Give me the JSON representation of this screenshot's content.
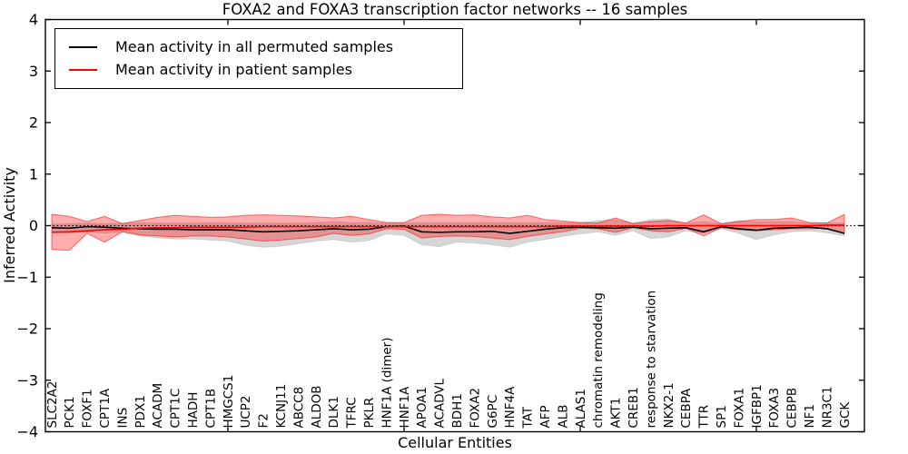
{
  "chart_data": {
    "type": "line",
    "title": "FOXA2 and FOXA3 transcription factor networks -- 16 samples",
    "xlabel": "Cellular Entities",
    "ylabel": "Inferred Activity",
    "ylim": [
      -4,
      4
    ],
    "yticks": [
      4,
      3,
      2,
      1,
      0,
      -1,
      -2,
      -3,
      -4
    ],
    "xticks_major": [
      10,
      20,
      30,
      40
    ],
    "grid": false,
    "legend_position": "upper left",
    "zero_reference_line": 0,
    "categories": [
      "SLC2A2",
      "PCK1",
      "FOXF1",
      "CPT1A",
      "INS",
      "PDX1",
      "ACADM",
      "CPT1C",
      "HADH",
      "CPT1B",
      "HMGCS1",
      "UCP2",
      "F2",
      "KCNJ11",
      "ABCC8",
      "ALDOB",
      "DLK1",
      "TFRC",
      "PKLR",
      "HNF1A (dimer)",
      "HNF1A",
      "APOA1",
      "ACADVL",
      "BDH1",
      "FOXA2",
      "G6PC",
      "HNF4A",
      "TAT",
      "AFP",
      "ALB",
      "ALAS1",
      "chromatin remodeling",
      "AKT1",
      "CREB1",
      "response to starvation",
      "NKX2-1",
      "CEBPA",
      "TTR",
      "SP1",
      "FOXA1",
      "IGFBP1",
      "FOXA3",
      "CEBPB",
      "NF1",
      "NR3C1",
      "GCK"
    ],
    "series": [
      {
        "name": "Mean activity in all permuted samples",
        "color": "#000000",
        "style": "solid",
        "values": [
          -0.04,
          -0.05,
          -0.02,
          -0.03,
          -0.05,
          -0.06,
          -0.07,
          -0.07,
          -0.08,
          -0.08,
          -0.08,
          -0.1,
          -0.12,
          -0.11,
          -0.1,
          -0.08,
          -0.06,
          -0.08,
          -0.07,
          -0.02,
          -0.01,
          -0.12,
          -0.13,
          -0.12,
          -0.12,
          -0.11,
          -0.15,
          -0.11,
          -0.07,
          -0.04,
          -0.03,
          -0.04,
          -0.05,
          -0.03,
          -0.06,
          -0.05,
          -0.04,
          -0.12,
          -0.02,
          -0.06,
          -0.09,
          -0.05,
          -0.04,
          -0.03,
          -0.06,
          -0.15
        ]
      },
      {
        "name": "Mean activity in patient samples",
        "color": "#ff0000",
        "style": "solid",
        "values": [
          -0.13,
          -0.12,
          -0.1,
          -0.08,
          -0.07,
          -0.05,
          -0.04,
          -0.04,
          -0.03,
          -0.03,
          -0.03,
          -0.03,
          -0.02,
          -0.02,
          -0.02,
          -0.02,
          -0.02,
          -0.02,
          -0.02,
          -0.02,
          -0.02,
          -0.02,
          -0.02,
          -0.02,
          -0.02,
          -0.02,
          -0.02,
          -0.02,
          -0.02,
          -0.01,
          -0.01,
          -0.01,
          -0.01,
          -0.01,
          -0.01,
          0.0,
          0.0,
          0.0,
          0.0,
          0.0,
          0.0,
          0.0,
          0.0,
          0.0,
          0.01,
          0.01
        ]
      }
    ],
    "bands": [
      {
        "name": "permuted samples std band",
        "fill": "rgba(0,0,0,0.16)",
        "edge": "rgba(0,0,0,0.10)",
        "upper": [
          0.03,
          0.04,
          0.05,
          0.04,
          0.05,
          0.06,
          0.05,
          0.05,
          0.05,
          0.06,
          0.05,
          0.05,
          0.05,
          0.05,
          0.05,
          0.06,
          0.08,
          0.06,
          0.06,
          0.05,
          0.05,
          0.06,
          0.06,
          0.06,
          0.06,
          0.06,
          0.06,
          0.06,
          0.06,
          0.06,
          0.06,
          0.1,
          0.11,
          0.05,
          0.12,
          0.13,
          0.05,
          0.08,
          0.04,
          0.1,
          0.08,
          0.08,
          0.08,
          0.05,
          0.06,
          0.05
        ],
        "lower": [
          -0.12,
          -0.15,
          -0.12,
          -0.15,
          -0.12,
          -0.2,
          -0.24,
          -0.26,
          -0.26,
          -0.28,
          -0.3,
          -0.38,
          -0.42,
          -0.4,
          -0.35,
          -0.3,
          -0.27,
          -0.32,
          -0.29,
          -0.16,
          -0.19,
          -0.37,
          -0.41,
          -0.32,
          -0.34,
          -0.37,
          -0.42,
          -0.32,
          -0.27,
          -0.21,
          -0.16,
          -0.12,
          -0.19,
          -0.1,
          -0.25,
          -0.22,
          -0.1,
          -0.15,
          -0.06,
          -0.15,
          -0.27,
          -0.18,
          -0.12,
          -0.1,
          -0.14,
          -0.2
        ]
      },
      {
        "name": "patient samples std band",
        "fill": "rgba(255,0,0,0.32)",
        "edge": "rgba(255,0,0,0.55)",
        "upper": [
          0.22,
          0.18,
          0.08,
          0.18,
          0.04,
          0.1,
          0.16,
          0.2,
          0.18,
          0.16,
          0.17,
          0.2,
          0.21,
          0.2,
          0.19,
          0.17,
          0.15,
          0.18,
          0.12,
          0.06,
          0.06,
          0.2,
          0.22,
          0.2,
          0.21,
          0.17,
          0.15,
          0.2,
          0.12,
          0.09,
          0.06,
          0.05,
          0.15,
          0.04,
          0.08,
          0.1,
          0.05,
          0.21,
          0.04,
          0.08,
          0.12,
          0.12,
          0.15,
          0.06,
          0.05,
          0.22
        ],
        "lower": [
          -0.46,
          -0.48,
          -0.15,
          -0.32,
          -0.12,
          -0.18,
          -0.2,
          -0.22,
          -0.2,
          -0.2,
          -0.22,
          -0.26,
          -0.3,
          -0.28,
          -0.25,
          -0.22,
          -0.15,
          -0.19,
          -0.16,
          -0.06,
          -0.07,
          -0.24,
          -0.21,
          -0.2,
          -0.21,
          -0.24,
          -0.27,
          -0.21,
          -0.16,
          -0.12,
          -0.05,
          -0.06,
          -0.13,
          -0.04,
          -0.1,
          -0.12,
          -0.05,
          -0.2,
          -0.04,
          -0.08,
          -0.1,
          -0.08,
          -0.06,
          -0.06,
          -0.05,
          -0.15
        ]
      }
    ]
  }
}
